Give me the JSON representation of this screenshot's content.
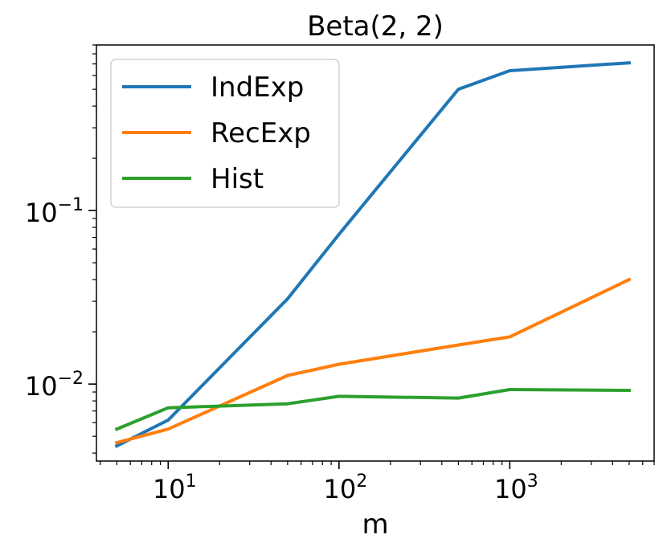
{
  "chart_data": {
    "type": "line",
    "title": "Beta(2, 2)",
    "xlabel": "m",
    "ylabel": "",
    "xscale": "log",
    "yscale": "log",
    "xlim": [
      3.8,
      7000
    ],
    "ylim": [
      0.0036,
      0.9
    ],
    "x_tick_labels": [
      {
        "value": 10,
        "base": "10",
        "exp": "1"
      },
      {
        "value": 100,
        "base": "10",
        "exp": "2"
      },
      {
        "value": 1000,
        "base": "10",
        "exp": "3"
      }
    ],
    "y_tick_labels": [
      {
        "value": 0.1,
        "base": "10",
        "exp": "−1"
      },
      {
        "value": 0.01,
        "base": "10",
        "exp": "−2"
      }
    ],
    "x": [
      5,
      10,
      50,
      100,
      500,
      1000,
      5000
    ],
    "series": [
      {
        "name": "IndExp",
        "color": "#1f77b4",
        "values": [
          0.0044,
          0.0062,
          0.031,
          0.073,
          0.5,
          0.64,
          0.71
        ]
      },
      {
        "name": "RecExp",
        "color": "#ff7f0e",
        "values": [
          0.0046,
          0.0055,
          0.0112,
          0.013,
          0.0168,
          0.0187,
          0.04
        ]
      },
      {
        "name": "Hist",
        "color": "#2ca02c",
        "values": [
          0.0055,
          0.0073,
          0.0077,
          0.0085,
          0.0083,
          0.0093,
          0.0092
        ]
      }
    ],
    "grid": false,
    "legend_position": "top-left"
  }
}
